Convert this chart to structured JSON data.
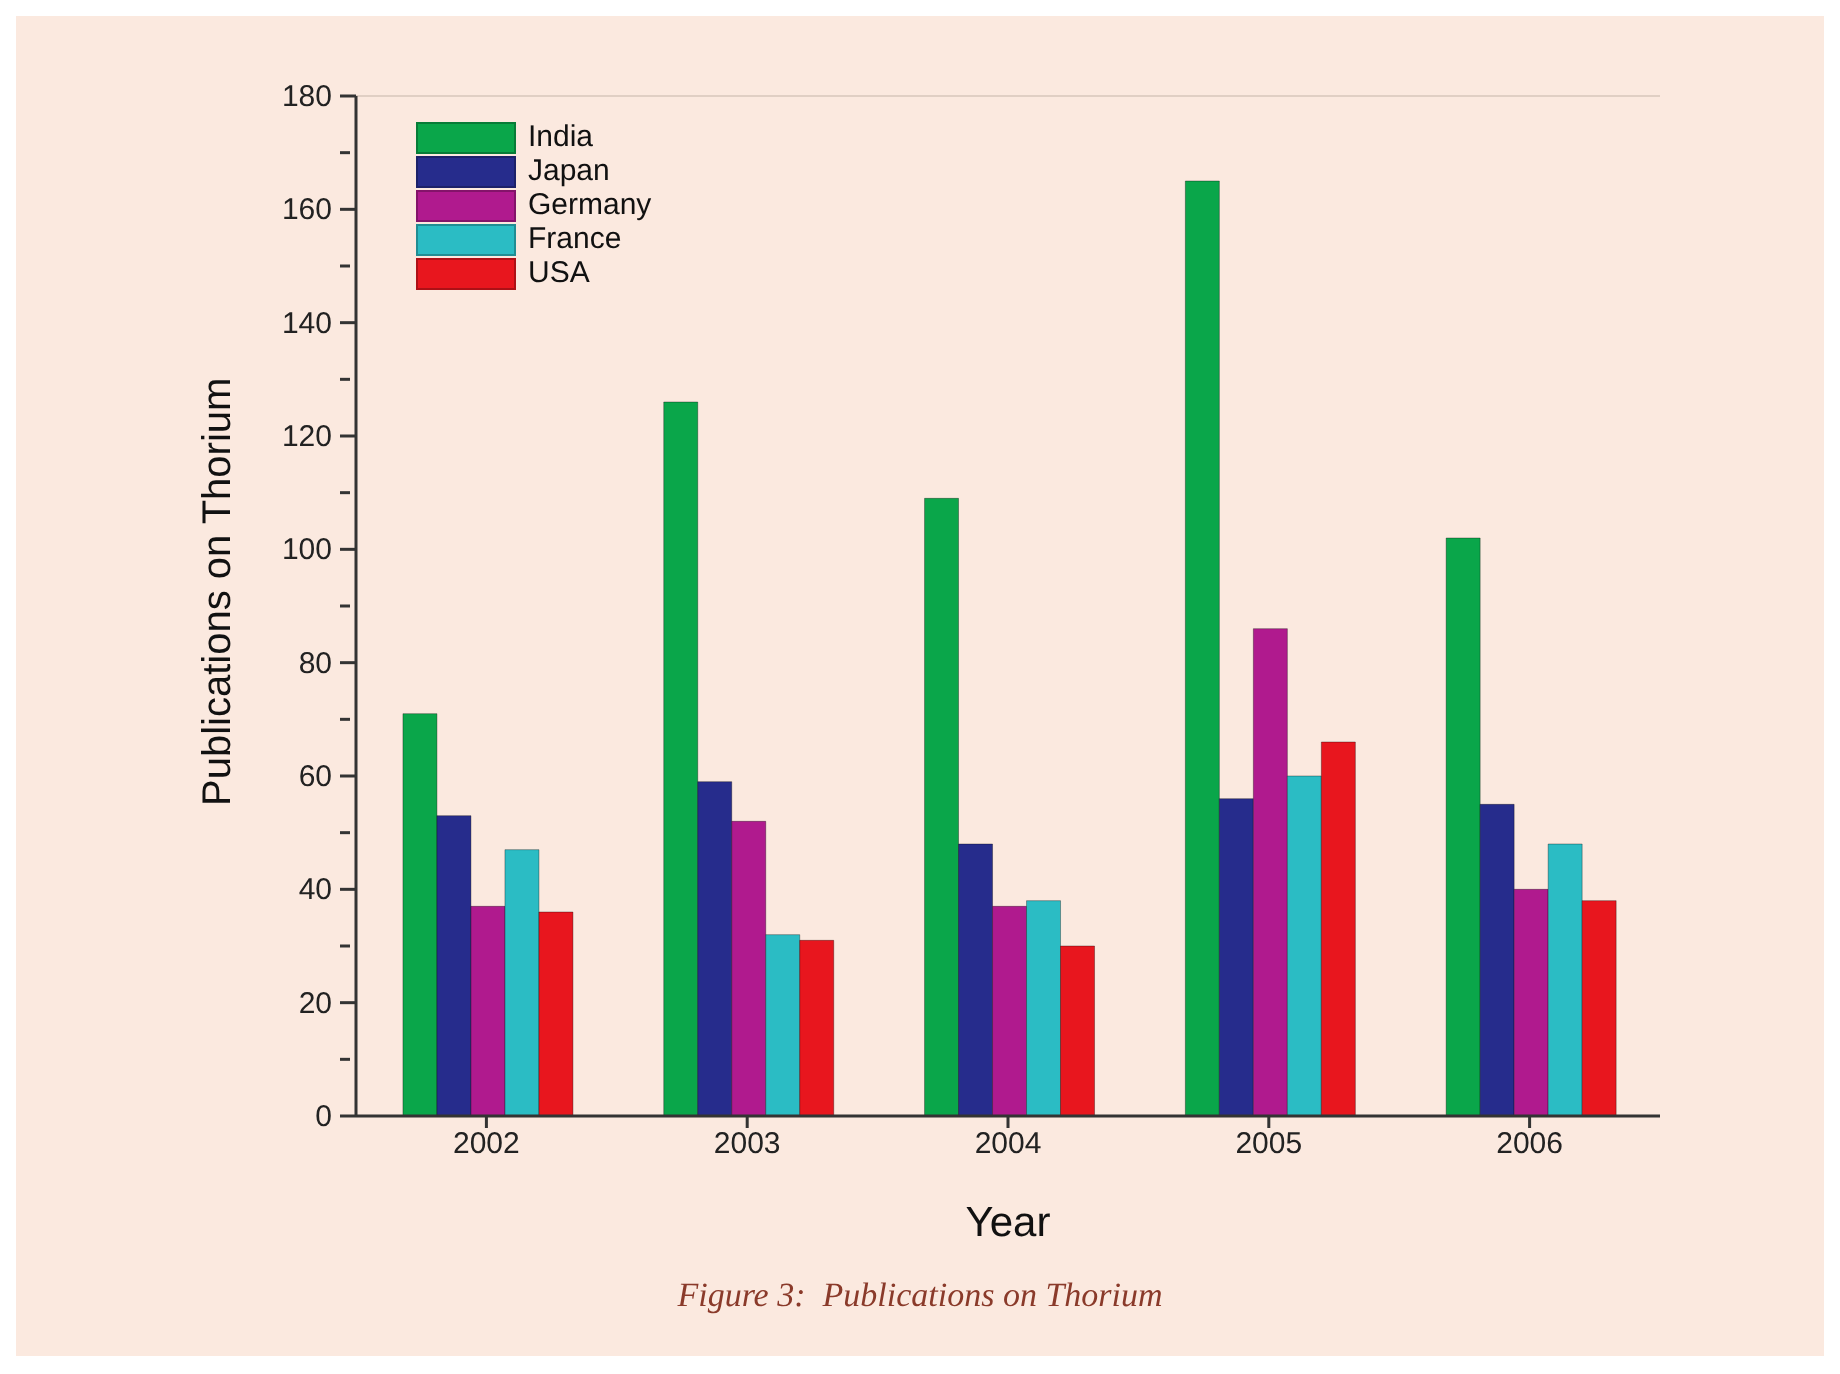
{
  "chart_data": {
    "type": "bar",
    "xlabel": "Year",
    "ylabel": "Publications on Thorium",
    "annotations": [
      "Figure 3:  Publications on Thorium"
    ],
    "categories": [
      "2002",
      "2003",
      "2004",
      "2005",
      "2006"
    ],
    "series": [
      {
        "name": "India",
        "color": "#0aa64a",
        "values": [
          71,
          126,
          109,
          165,
          102
        ]
      },
      {
        "name": "Japan",
        "color": "#262c8c",
        "values": [
          53,
          59,
          48,
          56,
          55
        ]
      },
      {
        "name": "Germany",
        "color": "#b01a8e",
        "values": [
          37,
          52,
          37,
          86,
          40
        ]
      },
      {
        "name": "France",
        "color": "#2bbcc4",
        "values": [
          47,
          32,
          38,
          60,
          48
        ]
      },
      {
        "name": "USA",
        "color": "#e8161e",
        "values": [
          36,
          31,
          30,
          66,
          38
        ]
      }
    ],
    "ylim": [
      0,
      180
    ],
    "yticks": [
      0,
      {
        "value": 10,
        "label": null
      },
      20,
      {
        "value": 30,
        "label": null
      },
      40,
      {
        "value": 50,
        "label": null
      },
      60,
      {
        "value": 70,
        "label": null
      },
      80,
      {
        "value": 90,
        "label": null
      },
      100,
      {
        "value": 110,
        "label": null
      },
      120,
      {
        "value": 130,
        "label": null
      },
      140,
      {
        "value": 150,
        "label": null
      },
      160,
      {
        "value": 170,
        "label": null
      },
      180
    ],
    "grid": false,
    "legend": "top left"
  }
}
